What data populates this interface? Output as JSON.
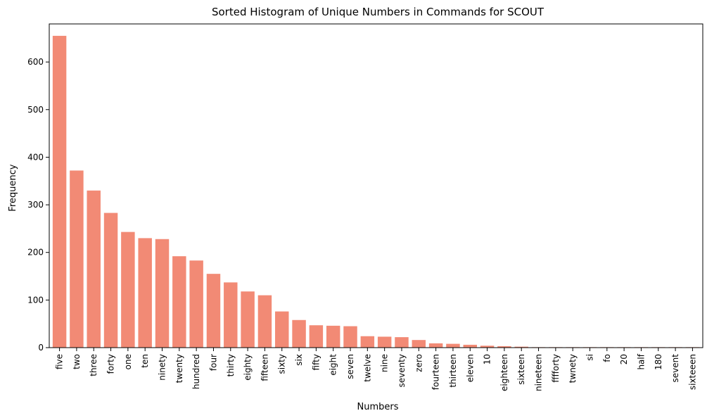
{
  "chart_data": {
    "type": "bar",
    "title": "Sorted Histogram of Unique Numbers in Commands for SCOUT",
    "xlabel": "Numbers",
    "ylabel": "Frequency",
    "ylim": [
      0,
      680
    ],
    "yticks": [
      0,
      100,
      200,
      300,
      400,
      500,
      600
    ],
    "grid": false,
    "bar_color": "#f28a75",
    "categories": [
      "five",
      "two",
      "three",
      "forty",
      "one",
      "ten",
      "ninety",
      "twenty",
      "hundred",
      "four",
      "thirty",
      "eighty",
      "fifteen",
      "sixty",
      "six",
      "fifty",
      "eight",
      "seven",
      "twelve",
      "nine",
      "seventy",
      "zero",
      "fourteen",
      "thirteen",
      "eleven",
      "10",
      "eighteen",
      "sixteen",
      "nineteen",
      "fffforty",
      "twnety",
      "si",
      "fo",
      "20",
      "half",
      "180",
      "sevent",
      "sixteeen"
    ],
    "values": [
      655,
      372,
      330,
      283,
      243,
      230,
      228,
      192,
      183,
      155,
      137,
      118,
      110,
      76,
      58,
      47,
      46,
      45,
      24,
      23,
      22,
      16,
      9,
      8,
      6,
      4,
      3,
      2,
      1,
      1,
      1,
      1,
      1,
      1,
      1,
      1,
      1,
      1
    ]
  }
}
